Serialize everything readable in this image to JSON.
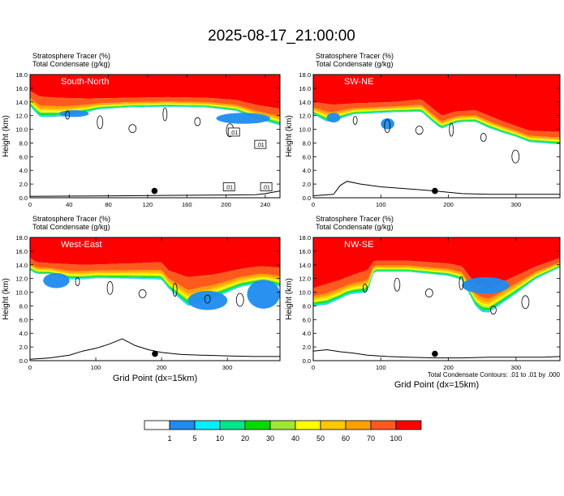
{
  "title": "2025-08-17_21:00:00",
  "colors": {
    "levels": [
      "#ffffff",
      "#1e8cf0",
      "#00f0ff",
      "#00e68c",
      "#00dc00",
      "#a0e632",
      "#ffff00",
      "#ffc800",
      "#ffa000",
      "#ff5a1e",
      "#ff0000"
    ],
    "terrain": "#000000",
    "contour": "#000000"
  },
  "colorbar": {
    "labels": [
      "1",
      "5",
      "10",
      "20",
      "30",
      "40",
      "50",
      "60",
      "70",
      "100"
    ]
  },
  "footnote": "Total Condensate Contours: .01 to .01 by .000",
  "chart_data": [
    {
      "type": "heatmap",
      "panel_label": "South-North",
      "title_left_1": "Stratosphere Tracer   (%)",
      "title_left_2": "Total Condensate   (g/kg)",
      "ylabel": "Height (km)",
      "xlabel": "",
      "xlim": [
        0,
        255
      ],
      "ylim": [
        0,
        18
      ],
      "xticks": [
        0,
        40,
        80,
        120,
        160,
        200,
        240
      ],
      "yticks": [
        0,
        2,
        4,
        6,
        8,
        10,
        12,
        14,
        16,
        18
      ],
      "tracer_base_km": [
        [
          0,
          15.6
        ],
        [
          10,
          14.8
        ],
        [
          30,
          14.6
        ],
        [
          60,
          14.5
        ],
        [
          100,
          14.6
        ],
        [
          140,
          14.7
        ],
        [
          180,
          14.6
        ],
        [
          210,
          14.3
        ],
        [
          230,
          13.6
        ],
        [
          255,
          13.0
        ]
      ],
      "transition_km": [
        [
          0,
          2.2
        ],
        [
          10,
          3.0
        ],
        [
          40,
          2.6
        ],
        [
          70,
          1.6
        ],
        [
          100,
          1.4
        ],
        [
          140,
          1.4
        ],
        [
          180,
          1.4
        ],
        [
          210,
          1.6
        ],
        [
          230,
          2.0
        ],
        [
          255,
          2.4
        ]
      ],
      "blue_patches": [
        {
          "x0": 190,
          "x1": 245,
          "y0": 10.8,
          "y1": 12.4
        },
        {
          "x0": 30,
          "x1": 60,
          "y0": 11.8,
          "y1": 12.8
        }
      ],
      "terrain_km": [
        [
          0,
          0.2
        ],
        [
          50,
          0.25
        ],
        [
          100,
          0.3
        ],
        [
          150,
          0.35
        ],
        [
          200,
          0.4
        ],
        [
          230,
          0.45
        ],
        [
          240,
          0.6
        ],
        [
          255,
          1.0
        ]
      ],
      "marker": [
        127,
        1.0
      ],
      "contour_labels": [
        {
          "x": 208,
          "y": 9.6,
          "text": ".01"
        },
        {
          "x": 235,
          "y": 7.8,
          "text": ".01"
        },
        {
          "x": 203,
          "y": 1.6,
          "text": ".01"
        },
        {
          "x": 241,
          "y": 1.6,
          "text": ".01"
        }
      ]
    },
    {
      "type": "heatmap",
      "panel_label": "SW-NE",
      "title_left_1": "Stratosphere Tracer   (%)",
      "title_left_2": "Total Condensate   (g/kg)",
      "ylabel": "Height (km)",
      "xlabel": "",
      "xlim": [
        0,
        365
      ],
      "ylim": [
        0,
        18
      ],
      "xticks": [
        0,
        100,
        200,
        300
      ],
      "yticks": [
        0,
        2,
        4,
        6,
        8,
        10,
        12,
        14,
        16,
        18
      ],
      "tracer_base_km": [
        [
          0,
          14.0
        ],
        [
          30,
          13.6
        ],
        [
          60,
          13.8
        ],
        [
          120,
          14.0
        ],
        [
          160,
          14.4
        ],
        [
          175,
          13.2
        ],
        [
          190,
          12.0
        ],
        [
          210,
          12.6
        ],
        [
          240,
          12.8
        ],
        [
          280,
          11.2
        ],
        [
          320,
          9.8
        ],
        [
          365,
          9.6
        ]
      ],
      "transition_km": [
        [
          0,
          1.8
        ],
        [
          20,
          2.6
        ],
        [
          60,
          1.6
        ],
        [
          120,
          1.5
        ],
        [
          180,
          2.0
        ],
        [
          220,
          1.6
        ],
        [
          260,
          1.8
        ],
        [
          300,
          1.6
        ],
        [
          365,
          1.8
        ]
      ],
      "blue_patches": [
        {
          "x0": 100,
          "x1": 120,
          "y0": 10.0,
          "y1": 11.6
        },
        {
          "x0": 20,
          "x1": 40,
          "y0": 11.0,
          "y1": 12.4
        }
      ],
      "terrain_km": [
        [
          0,
          0.3
        ],
        [
          30,
          0.5
        ],
        [
          40,
          1.8
        ],
        [
          50,
          2.4
        ],
        [
          70,
          2.0
        ],
        [
          100,
          1.6
        ],
        [
          140,
          1.3
        ],
        [
          180,
          1.0
        ],
        [
          220,
          0.6
        ],
        [
          260,
          0.5
        ],
        [
          300,
          0.5
        ],
        [
          340,
          0.5
        ],
        [
          365,
          0.5
        ]
      ],
      "marker": [
        180,
        1.0
      ],
      "contour_labels": []
    },
    {
      "type": "heatmap",
      "panel_label": "West-East",
      "title_left_1": "Stratosphere Tracer   (%)",
      "title_left_2": "Total Condensate   (g/kg)",
      "ylabel": "Height (km)",
      "xlabel": "Grid Point (dx=15km)",
      "xlim": [
        0,
        380
      ],
      "ylim": [
        0,
        18
      ],
      "xticks": [
        0,
        100,
        200,
        300
      ],
      "yticks": [
        0,
        2,
        4,
        6,
        8,
        10,
        12,
        14,
        16,
        18
      ],
      "tracer_base_km": [
        [
          0,
          15.0
        ],
        [
          10,
          14.4
        ],
        [
          40,
          14.2
        ],
        [
          80,
          14.0
        ],
        [
          150,
          14.2
        ],
        [
          200,
          14.4
        ],
        [
          210,
          13.2
        ],
        [
          240,
          12.2
        ],
        [
          280,
          12.6
        ],
        [
          320,
          13.4
        ],
        [
          350,
          13.8
        ],
        [
          380,
          13.6
        ]
      ],
      "transition_km": [
        [
          0,
          1.8
        ],
        [
          30,
          1.6
        ],
        [
          60,
          2.2
        ],
        [
          100,
          2.0
        ],
        [
          150,
          2.2
        ],
        [
          210,
          2.6
        ],
        [
          240,
          4.2
        ],
        [
          280,
          3.4
        ],
        [
          320,
          2.6
        ],
        [
          360,
          2.4
        ],
        [
          380,
          2.8
        ]
      ],
      "blue_patches": [
        {
          "x0": 20,
          "x1": 60,
          "y0": 10.6,
          "y1": 12.8
        },
        {
          "x0": 240,
          "x1": 300,
          "y0": 7.4,
          "y1": 10.2
        },
        {
          "x0": 330,
          "x1": 380,
          "y0": 7.6,
          "y1": 11.8
        }
      ],
      "terrain_km": [
        [
          0,
          0.2
        ],
        [
          30,
          0.4
        ],
        [
          60,
          0.8
        ],
        [
          80,
          1.4
        ],
        [
          100,
          1.8
        ],
        [
          120,
          2.4
        ],
        [
          140,
          3.2
        ],
        [
          160,
          2.2
        ],
        [
          180,
          1.6
        ],
        [
          200,
          1.2
        ],
        [
          230,
          0.9
        ],
        [
          260,
          0.8
        ],
        [
          300,
          0.7
        ],
        [
          340,
          0.6
        ],
        [
          380,
          0.6
        ]
      ],
      "marker": [
        190,
        1.0
      ],
      "contour_labels": []
    },
    {
      "type": "heatmap",
      "panel_label": "NW-SE",
      "title_left_1": "Stratosphere Tracer   (%)",
      "title_left_2": "Total Condensate   (g/kg)",
      "ylabel": "Height (km)",
      "xlabel": "Grid Point (dx=15km)",
      "xlim": [
        0,
        365
      ],
      "ylim": [
        0,
        18
      ],
      "xticks": [
        0,
        100,
        200,
        300
      ],
      "yticks": [
        0,
        2,
        4,
        6,
        8,
        10,
        12,
        14,
        16,
        18
      ],
      "tracer_base_km": [
        [
          0,
          10.6
        ],
        [
          20,
          11.2
        ],
        [
          40,
          11.8
        ],
        [
          60,
          12.6
        ],
        [
          80,
          13.2
        ],
        [
          90,
          14.6
        ],
        [
          140,
          14.6
        ],
        [
          200,
          14.2
        ],
        [
          220,
          13.8
        ],
        [
          240,
          11.2
        ],
        [
          260,
          10.6
        ],
        [
          300,
          12.4
        ],
        [
          330,
          13.8
        ],
        [
          365,
          15.0
        ]
      ],
      "transition_km": [
        [
          0,
          2.6
        ],
        [
          20,
          3.0
        ],
        [
          50,
          2.6
        ],
        [
          80,
          3.2
        ],
        [
          90,
          1.6
        ],
        [
          140,
          1.6
        ],
        [
          200,
          1.8
        ],
        [
          220,
          2.0
        ],
        [
          250,
          3.8
        ],
        [
          300,
          2.6
        ],
        [
          330,
          1.8
        ],
        [
          365,
          1.4
        ]
      ],
      "blue_patches": [
        {
          "x0": 220,
          "x1": 290,
          "y0": 9.8,
          "y1": 12.2
        }
      ],
      "terrain_km": [
        [
          0,
          1.4
        ],
        [
          20,
          1.6
        ],
        [
          40,
          1.3
        ],
        [
          60,
          1.1
        ],
        [
          80,
          0.8
        ],
        [
          110,
          0.6
        ],
        [
          140,
          0.5
        ],
        [
          180,
          0.4
        ],
        [
          220,
          0.4
        ],
        [
          260,
          0.5
        ],
        [
          300,
          0.5
        ],
        [
          340,
          0.5
        ],
        [
          365,
          0.6
        ]
      ],
      "marker": [
        180,
        1.0
      ],
      "contour_labels": []
    }
  ]
}
